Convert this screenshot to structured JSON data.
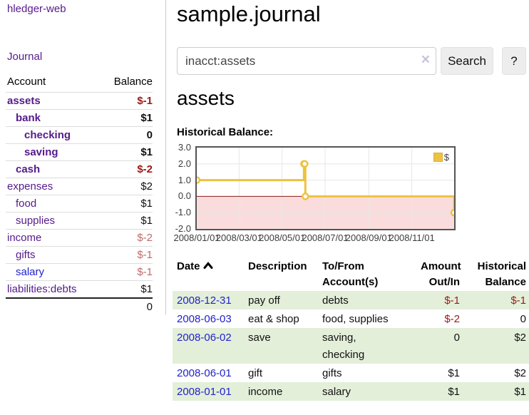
{
  "palette": {
    "link_visited_purple": "#551a8b",
    "link_blue": "#2222cc",
    "negative_dark_red": "#9a1919",
    "negative_light_red": "#c06a6a",
    "row_green": "#e3efd9",
    "series_gold": "#EDC240"
  },
  "sidebar": {
    "brand": "hledger-web",
    "journal_link": "Journal",
    "accounts": {
      "col_account": "Account",
      "col_balance": "Balance",
      "rows": [
        {
          "name": "assets",
          "balance": "$-1"
        },
        {
          "name": "bank",
          "balance": "$1"
        },
        {
          "name": "checking",
          "balance": "0"
        },
        {
          "name": "saving",
          "balance": "$1"
        },
        {
          "name": "cash",
          "balance": "$-2"
        },
        {
          "name": "expenses",
          "balance": "$2"
        },
        {
          "name": "food",
          "balance": "$1"
        },
        {
          "name": "supplies",
          "balance": "$1"
        },
        {
          "name": "income",
          "balance": "$-2"
        },
        {
          "name": "gifts",
          "balance": "$-1"
        },
        {
          "name": "salary",
          "balance": "$-1"
        },
        {
          "name": "liabilities:debts",
          "balance": "$1"
        }
      ],
      "total": "0"
    }
  },
  "main": {
    "title": "sample.journal",
    "search": {
      "value": "inacct:assets",
      "clear_icon": "×",
      "search_button": "Search",
      "help_button": "?"
    },
    "account_heading": "assets",
    "chart_heading": "Historical Balance:"
  },
  "chart_data": {
    "type": "line",
    "title": "Historical Balance",
    "step": true,
    "xlim_days": [
      0,
      365
    ],
    "ylim": [
      -2,
      3
    ],
    "y_ticks": [
      3.0,
      2.0,
      1.0,
      0.0,
      -1.0,
      -2.0
    ],
    "x_ticks": [
      {
        "label": "2008/01/01",
        "day": 0
      },
      {
        "label": "2008/03/01",
        "day": 60
      },
      {
        "label": "2008/05/01",
        "day": 121
      },
      {
        "label": "2008/07/01",
        "day": 182
      },
      {
        "label": "2008/09/01",
        "day": 244
      },
      {
        "label": "2008/11/01",
        "day": 305
      }
    ],
    "series": [
      {
        "name": "$",
        "color": "#EDC240",
        "points": [
          {
            "date": "2008/01/01",
            "day": 0,
            "value": 1
          },
          {
            "date": "2008/06/01",
            "day": 152,
            "value": 2
          },
          {
            "date": "2008/06/02",
            "day": 153,
            "value": 2
          },
          {
            "date": "2008/06/03",
            "day": 154,
            "value": 0
          },
          {
            "date": "2008/12/31",
            "day": 365,
            "value": -1
          }
        ]
      }
    ],
    "grid": true,
    "grid_color": "#e7e7e7",
    "negative_fill": "#fbdcdc",
    "zero_line_color": "#8b1a1a",
    "legend": {
      "position": "top-right",
      "label": "$",
      "swatch": "#EDC240"
    }
  },
  "register": {
    "headers": {
      "date": "Date",
      "description": {
        "l1": "Description"
      },
      "tofrom": {
        "l1": "To/From",
        "l2": "Account(s)"
      },
      "amount": {
        "l1": "Amount",
        "l2": "Out/In"
      },
      "historical": {
        "l1": "Historical",
        "l2": "Balance"
      }
    },
    "rows": [
      {
        "date": "2008-12-31",
        "description": "pay off",
        "accounts": "debts",
        "amount": "$-1",
        "balance": "$-1"
      },
      {
        "date": "2008-06-03",
        "description": "eat & shop",
        "accounts": "food, supplies",
        "amount": "$-2",
        "balance": "0"
      },
      {
        "date": "2008-06-02",
        "description": "save",
        "accounts": "saving,\nchecking",
        "amount": "0",
        "balance": "$2"
      },
      {
        "date": "2008-06-01",
        "description": "gift",
        "accounts": "gifts",
        "amount": "$1",
        "balance": "$2"
      },
      {
        "date": "2008-01-01",
        "description": "income",
        "accounts": "salary",
        "amount": "$1",
        "balance": "$1"
      }
    ]
  }
}
